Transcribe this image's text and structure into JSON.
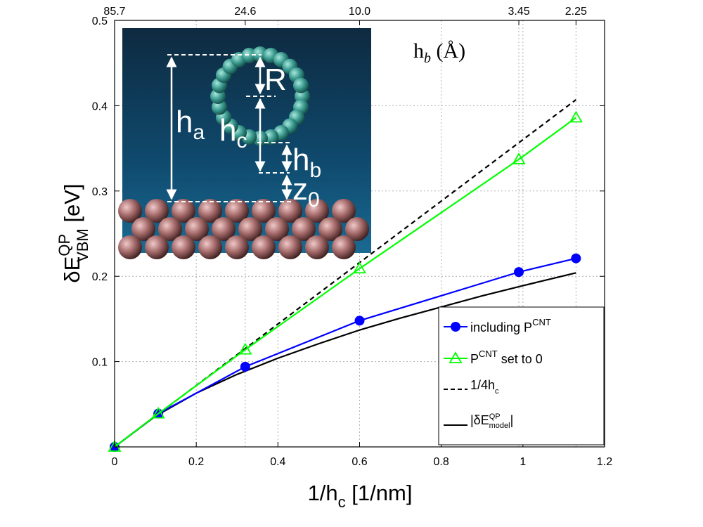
{
  "chart_data": {
    "type": "line",
    "xlabel": "1/h",
    "xlabel_sub": "c",
    "xlabel_unit": " [1/nm]",
    "ylabel_prefix": "δE",
    "ylabel_sup": "QP",
    "ylabel_sub": "VBM",
    "ylabel_unit": " [eV]",
    "xlim": [
      0,
      1.2
    ],
    "ylim": [
      0,
      0.5
    ],
    "x_ticks": [
      0,
      0.2,
      0.4,
      0.6,
      0.8,
      1.0,
      1.2
    ],
    "x_tick_labels": [
      "0",
      "0.2",
      "0.4",
      "0.6",
      "0.8",
      "1",
      "1.2"
    ],
    "y_ticks": [
      0.1,
      0.2,
      0.3,
      0.4,
      0.5
    ],
    "y_tick_labels": [
      "0.1",
      "0.2",
      "0.3",
      "0.4",
      "0.5"
    ],
    "top_axis": {
      "label_main": "h",
      "label_sub": "b",
      "label_unit": " (Å)",
      "ticks": [
        0.0,
        0.32,
        0.6,
        0.99,
        1.13
      ],
      "tick_labels": [
        "85.7",
        "24.6",
        "10.0",
        "3.45",
        "2.25"
      ]
    },
    "grid": true,
    "series": [
      {
        "name": "including P^CNT",
        "color": "#0000ff",
        "marker": "circle",
        "line": "solid",
        "x": [
          0.0,
          0.107,
          0.32,
          0.6,
          0.99,
          1.13
        ],
        "y": [
          0.0,
          0.039,
          0.094,
          0.148,
          0.205,
          0.221
        ]
      },
      {
        "name": "P^CNT set to 0",
        "color": "#00ff00",
        "marker": "triangle",
        "line": "solid",
        "x": [
          0.0,
          0.107,
          0.32,
          0.6,
          0.99,
          1.13
        ],
        "y": [
          0.0,
          0.039,
          0.114,
          0.209,
          0.337,
          0.386
        ]
      },
      {
        "name": "1/4h_c",
        "color": "#000000",
        "marker": "none",
        "line": "dashed",
        "x": [
          0.0,
          1.13
        ],
        "y": [
          0.0,
          0.407
        ]
      },
      {
        "name": "|δE^QP_model|",
        "color": "#000000",
        "marker": "none",
        "line": "solid",
        "x": [
          0.0,
          0.1,
          0.2,
          0.3,
          0.4,
          0.5,
          0.6,
          0.7,
          0.8,
          0.9,
          1.0,
          1.13
        ],
        "y": [
          0.0,
          0.036,
          0.063,
          0.085,
          0.104,
          0.121,
          0.137,
          0.151,
          0.164,
          0.177,
          0.189,
          0.204
        ]
      }
    ],
    "legend": {
      "position": "bottom-right",
      "entries": [
        {
          "main": "including P",
          "sup": "CNT",
          "after": ""
        },
        {
          "main": "P",
          "sup": "CNT",
          "after": " set to 0"
        },
        {
          "main": "1/4h",
          "sub": "c",
          "after": ""
        },
        {
          "main": "|δE",
          "sup": "QP",
          "sub": "model",
          "after": "|"
        }
      ]
    },
    "inset": {
      "labels": {
        "ha_main": "h",
        "ha_sub": "a",
        "hc_main": "h",
        "hc_sub": "c",
        "hb_main": "h",
        "hb_sub": "b",
        "z0_main": "z",
        "z0_sub": "0",
        "R": "R"
      }
    }
  }
}
